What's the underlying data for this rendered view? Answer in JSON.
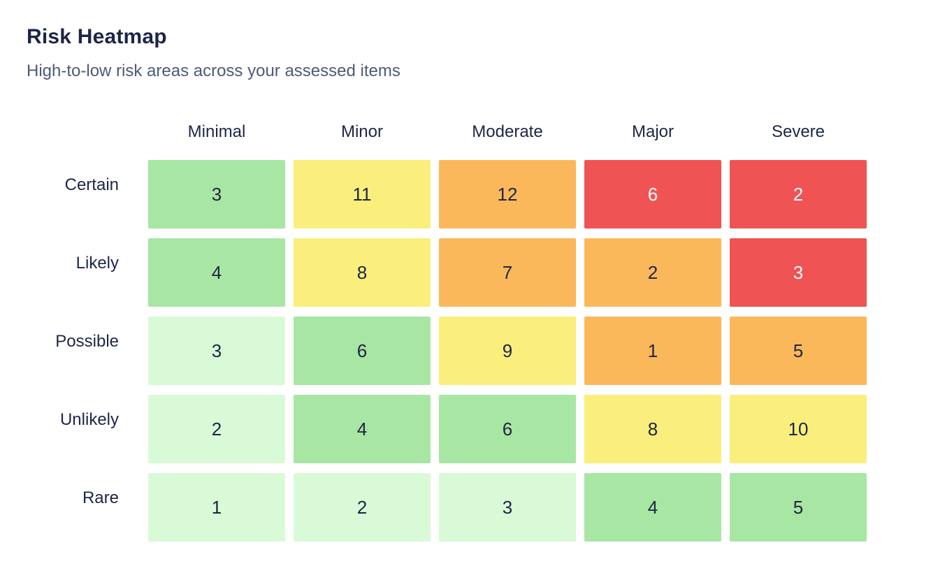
{
  "header": {
    "title": "Risk Heatmap",
    "subtitle": "High-to-low risk areas across your assessed items"
  },
  "chart_data": {
    "type": "heatmap",
    "title": "Risk Heatmap",
    "subtitle": "High-to-low risk areas across your assessed items",
    "columns": [
      "Minimal",
      "Minor",
      "Moderate",
      "Major",
      "Severe"
    ],
    "rows": [
      "Certain",
      "Likely",
      "Possible",
      "Unlikely",
      "Rare"
    ],
    "values": [
      [
        3,
        11,
        12,
        6,
        2
      ],
      [
        4,
        8,
        7,
        2,
        3
      ],
      [
        3,
        6,
        9,
        1,
        5
      ],
      [
        2,
        4,
        6,
        8,
        10
      ],
      [
        1,
        2,
        3,
        4,
        5
      ]
    ],
    "cell_levels": [
      [
        "green",
        "yellow",
        "orange",
        "red",
        "red"
      ],
      [
        "green",
        "yellow",
        "orange",
        "orange",
        "red"
      ],
      [
        "lightgreen",
        "green",
        "yellow",
        "orange",
        "orange"
      ],
      [
        "lightgreen",
        "green",
        "green",
        "yellow",
        "yellow"
      ],
      [
        "lightgreen",
        "lightgreen",
        "lightgreen",
        "green",
        "green"
      ]
    ],
    "level_colors": {
      "lightgreen": "#d9fad6",
      "green": "#a8e6a3",
      "yellow": "#faee7d",
      "orange": "#fbb85a",
      "red": "#ef5353"
    },
    "text_colors": {
      "default": "#1c2642",
      "red": "#ffffff"
    },
    "layout": {
      "legend": "none",
      "grid": "off",
      "xlabel": "",
      "ylabel": ""
    }
  }
}
